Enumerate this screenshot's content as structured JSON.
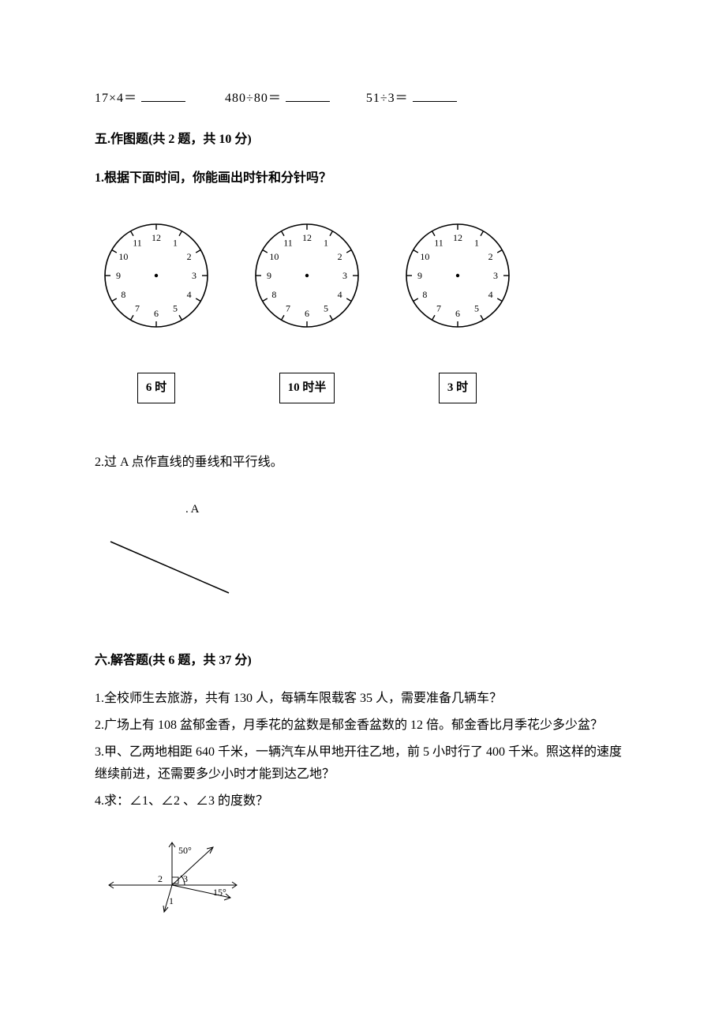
{
  "calc": {
    "items": [
      {
        "lhs": "17×4＝"
      },
      {
        "lhs": "480÷80＝"
      },
      {
        "lhs": "51÷3＝"
      }
    ]
  },
  "section5": {
    "title": "五.作图题(共 2 题，共 10 分)",
    "q1": "1.根据下面时间，你能画出时针和分针吗？",
    "clocks": [
      {
        "label": "6 时"
      },
      {
        "label": "10 时半"
      },
      {
        "label": "3 时"
      }
    ],
    "q2": "2.过 A 点作直线的垂线和平行线。",
    "pointLabel": ". A"
  },
  "section6": {
    "title": "六.解答题(共 6 题，共 37 分)",
    "q1": "1.全校师生去旅游，共有 130 人，每辆车限载客 35 人，需要准备几辆车？",
    "q2": "2.广场上有 108 盆郁金香，月季花的盆数是郁金香盆数的 12 倍。郁金香比月季花少多少盆？",
    "q3": "3.甲、乙两地相距 640 千米，一辆汽车从甲地开往乙地，前 5 小时行了 400 千米。照这样的速度继续前进，还需要多少小时才能到达乙地？",
    "q4": "4.求：∠1、∠2 、∠3 的度数？",
    "angle": {
      "label50": "50°",
      "label15": "15°",
      "label1": "1",
      "label2": "2",
      "label3": "3"
    }
  },
  "clockface": {
    "numbers": [
      "12",
      "1",
      "2",
      "3",
      "4",
      "5",
      "6",
      "7",
      "8",
      "9",
      "10",
      "11"
    ],
    "radius": 65,
    "numRadius": 48,
    "tickOuter": 65,
    "tickInner": 58,
    "stroke": "#000000",
    "font": "12px"
  },
  "colors": {
    "text": "#000000",
    "bg": "#ffffff"
  }
}
